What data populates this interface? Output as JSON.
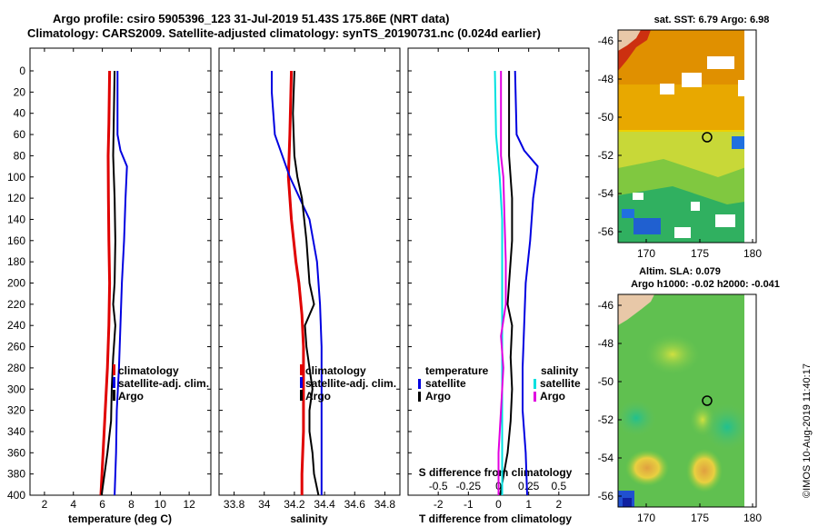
{
  "title_line1": "Argo profile: csiro 5905396_123 31-Jul-2019 51.43S 175.86E (NRT data)",
  "title_line2": "Climatology: CARS2009. Satellite-adjusted climatology: synTS_20190731.nc (0.024d earlier)",
  "watermark": "©IMOS 10-Aug-2019 11:40:17",
  "colors": {
    "climatology": "#e00000",
    "satellite": "#0000e0",
    "argo": "#000000",
    "sal_satellite": "#00e0e0",
    "sal_argo": "#e000e0"
  },
  "chart_data": [
    {
      "type": "line",
      "title": "",
      "xlabel": "temperature (deg C)",
      "ylabel": "",
      "xlim": [
        1,
        13.5
      ],
      "ylim": [
        400,
        0
      ],
      "xticks": [
        2,
        4,
        6,
        8,
        10,
        12
      ],
      "yticks": [
        0,
        20,
        40,
        60,
        80,
        100,
        120,
        140,
        160,
        180,
        200,
        220,
        240,
        260,
        280,
        300,
        320,
        340,
        360,
        380,
        400
      ],
      "legend": {
        "position": "lower-right",
        "labels": [
          "climatology",
          "satellite-adj. clim.",
          "Argo"
        ]
      },
      "series": [
        {
          "name": "climatology",
          "color": "#e00000",
          "depth": [
            0,
            50,
            80,
            120,
            160,
            200,
            240,
            280,
            320,
            360,
            400
          ],
          "values": [
            6.5,
            6.45,
            6.4,
            6.42,
            6.45,
            6.5,
            6.45,
            6.35,
            6.2,
            6.05,
            5.9
          ]
        },
        {
          "name": "satellite-adj. clim.",
          "color": "#0000e0",
          "depth": [
            0,
            60,
            75,
            90,
            120,
            160,
            200,
            240,
            280,
            320,
            360,
            400
          ],
          "values": [
            7.05,
            7.05,
            7.25,
            7.7,
            7.6,
            7.5,
            7.35,
            7.25,
            7.15,
            7.0,
            6.95,
            6.85
          ]
        },
        {
          "name": "Argo",
          "color": "#000000",
          "depth": [
            0,
            40,
            80,
            120,
            160,
            200,
            220,
            240,
            270,
            300,
            330,
            360,
            390,
            400
          ],
          "values": [
            6.85,
            6.8,
            6.75,
            6.85,
            6.9,
            6.85,
            6.75,
            6.9,
            6.75,
            6.65,
            6.6,
            6.35,
            6.05,
            5.95
          ]
        }
      ]
    },
    {
      "type": "line",
      "title": "",
      "xlabel": "salinity",
      "ylabel": "",
      "xlim": [
        33.7,
        34.9
      ],
      "ylim": [
        400,
        0
      ],
      "xticks": [
        33.8,
        34,
        34.2,
        34.4,
        34.6,
        34.8
      ],
      "yticks": [
        0,
        20,
        40,
        60,
        80,
        100,
        120,
        140,
        160,
        180,
        200,
        220,
        240,
        260,
        280,
        300,
        320,
        340,
        360,
        380,
        400
      ],
      "legend": {
        "position": "lower-right",
        "labels": [
          "climatology",
          "satellite-adj. clim.",
          "Argo"
        ]
      },
      "series": [
        {
          "name": "climatology",
          "color": "#e00000",
          "depth": [
            0,
            60,
            100,
            140,
            180,
            200,
            230,
            260,
            300,
            340,
            380,
            400
          ],
          "values": [
            34.18,
            34.17,
            34.16,
            34.18,
            34.21,
            34.23,
            34.25,
            34.26,
            34.26,
            34.26,
            34.25,
            34.25
          ]
        },
        {
          "name": "satellite-adj. clim.",
          "color": "#0000e0",
          "depth": [
            0,
            20,
            60,
            100,
            140,
            180,
            220,
            260,
            300,
            340,
            380,
            400
          ],
          "values": [
            34.05,
            34.05,
            34.07,
            34.17,
            34.3,
            34.35,
            34.37,
            34.38,
            34.38,
            34.38,
            34.38,
            34.38
          ]
        },
        {
          "name": "Argo",
          "color": "#000000",
          "depth": [
            0,
            40,
            80,
            100,
            120,
            160,
            200,
            220,
            240,
            260,
            280,
            300,
            320,
            340,
            360,
            380,
            400
          ],
          "values": [
            34.2,
            34.19,
            34.2,
            34.22,
            34.25,
            34.28,
            34.3,
            34.33,
            34.27,
            34.28,
            34.3,
            34.32,
            34.3,
            34.3,
            34.32,
            34.33,
            34.36
          ]
        }
      ]
    },
    {
      "type": "line",
      "title": "",
      "xlabel": "T difference from climatology",
      "ylabel": "",
      "xlim": [
        -3,
        3
      ],
      "ylim": [
        400,
        0
      ],
      "xticks": [
        -2,
        -1,
        0,
        1,
        2
      ],
      "secondary_xlabel": "S difference from climatology",
      "secondary_xlim": [
        -0.75,
        0.75
      ],
      "secondary_xticks": [
        -0.5,
        -0.25,
        0,
        0.25,
        0.5
      ],
      "legend": {
        "position": "lower",
        "labels": [
          "temperature",
          "satellite",
          "Argo",
          "salinity",
          "satellite",
          "Argo"
        ]
      },
      "series": [
        {
          "name": "temperature satellite",
          "color": "#0000e0",
          "depth": [
            0,
            60,
            75,
            90,
            120,
            160,
            200,
            240,
            280,
            320,
            360,
            400
          ],
          "values": [
            0.55,
            0.6,
            0.85,
            1.3,
            1.15,
            1.05,
            0.9,
            0.85,
            0.8,
            0.8,
            0.9,
            0.95
          ]
        },
        {
          "name": "temperature Argo",
          "color": "#000000",
          "depth": [
            0,
            40,
            80,
            120,
            160,
            200,
            220,
            240,
            270,
            300,
            330,
            360,
            400
          ],
          "values": [
            0.35,
            0.35,
            0.35,
            0.45,
            0.45,
            0.35,
            0.3,
            0.45,
            0.4,
            0.45,
            0.4,
            0.3,
            0.05
          ]
        },
        {
          "name": "salinity satellite",
          "color": "#00e0e0",
          "depth": [
            0,
            60,
            100,
            140,
            200,
            260,
            320,
            400
          ],
          "values": [
            -0.03,
            -0.02,
            0.01,
            0.03,
            0.03,
            0.03,
            0.03,
            0.03
          ]
        },
        {
          "name": "salinity Argo",
          "color": "#e000e0",
          "depth": [
            0,
            80,
            100,
            140,
            180,
            220,
            250,
            280,
            320,
            360,
            400
          ],
          "values": [
            0.02,
            0.02,
            0.04,
            0.05,
            0.06,
            0.06,
            0.02,
            0.04,
            0.02,
            0.0,
            0.0
          ]
        }
      ]
    }
  ],
  "maps": {
    "sst": {
      "title": "sat. SST: 6.79 Argo: 6.98",
      "yticks": [
        "-46",
        "-48",
        "-50",
        "-52",
        "-54",
        "-56"
      ],
      "xticks": [
        "170",
        "175",
        "180"
      ],
      "lat": -51.43,
      "lon": 175.86
    },
    "sla": {
      "title1": "Altim. SLA: 0.079",
      "title2": "Argo h1000: -0.02 h2000: -0.041",
      "yticks": [
        "-46",
        "-48",
        "-50",
        "-52",
        "-54",
        "-56"
      ],
      "xticks": [
        "170",
        "175",
        "180"
      ],
      "lat": -51.43,
      "lon": 175.86
    }
  }
}
